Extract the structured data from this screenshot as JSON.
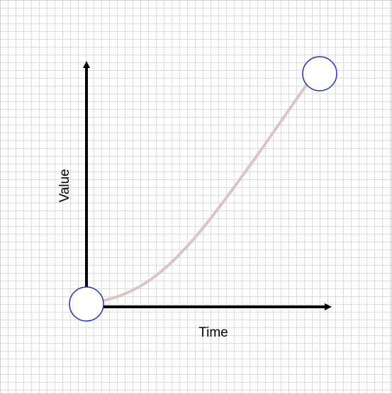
{
  "axes": {
    "x_label": "Time",
    "y_label": "Value"
  },
  "colors": {
    "axis": "#000000",
    "curve": "#dcc4c4",
    "handle_fill": "#ffffff",
    "handle_stroke": "#1f2fd0",
    "grid": "#dcdcdc"
  }
}
